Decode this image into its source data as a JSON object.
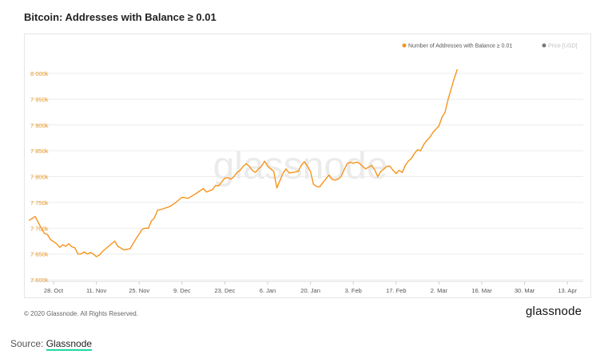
{
  "header": {
    "title": "Bitcoin: Addresses with Balance ≥ 0.01"
  },
  "footer": {
    "copyright": "© 2020 Glassnode. All Rights Reserved.",
    "brand": "glassnode"
  },
  "source": {
    "label": "Source:",
    "link_text": "Glassnode"
  },
  "watermark": "glassnode",
  "colors": {
    "series": "#f7931a",
    "price": "#777777",
    "tick_y": "#e8961e",
    "tick_x": "#555555",
    "grid": "#ececec"
  },
  "chart_data": {
    "type": "line",
    "title": "Bitcoin: Addresses with Balance ≥ 0.01",
    "xlabel": "",
    "ylabel": "",
    "legend": [
      {
        "name": "Number of Addresses with Balance ≥ 0.01",
        "color": "#f7931a"
      },
      {
        "name": "Price [USD]",
        "color": "#777777"
      }
    ],
    "legend_position": "top-right",
    "x_ticks": [
      "28. Oct",
      "11. Nov",
      "25. Nov",
      "9. Dec",
      "23. Dec",
      "6. Jan",
      "20. Jan",
      "3. Feb",
      "17. Feb",
      "2. Mar",
      "16. Mar",
      "30. Mar",
      "13. Apr"
    ],
    "y_ticks": [
      "7 600k",
      "7 650k",
      "7 700k",
      "7 750k",
      "7 800k",
      "7 850k",
      "7 900k",
      "7 950k",
      "8 000k"
    ],
    "ylim": [
      7600000,
      8000000
    ],
    "series": [
      {
        "name": "Number of Addresses with Balance ≥ 0.01",
        "x_days": [
          0,
          2,
          4,
          5,
          6,
          7,
          9,
          10,
          11,
          12,
          13,
          14,
          15,
          16,
          17,
          18,
          19,
          20,
          21,
          22,
          23,
          24,
          25,
          26,
          28,
          29,
          31,
          33,
          35,
          37,
          38,
          39,
          40,
          41,
          42,
          43,
          44,
          46,
          48,
          50,
          52,
          54,
          56,
          57,
          58,
          60,
          61,
          62,
          63,
          64,
          65,
          66,
          67,
          68,
          69,
          70,
          71,
          72,
          73,
          74,
          75,
          76,
          77,
          78,
          79,
          80,
          81,
          82,
          83,
          84,
          85,
          86,
          87,
          88,
          89,
          90,
          91,
          92,
          93,
          94,
          95,
          96,
          97,
          98,
          99,
          100,
          101,
          102,
          103,
          104,
          105,
          106,
          107,
          108,
          109,
          110,
          111,
          112,
          113,
          114,
          115,
          116,
          117,
          118,
          119,
          120,
          121,
          122,
          123,
          124,
          125,
          126,
          127,
          128,
          129,
          130,
          131,
          132,
          133,
          134,
          135,
          136,
          137,
          138,
          139,
          140
        ],
        "values": [
          7715000,
          7723000,
          7700000,
          7690000,
          7688000,
          7678000,
          7670000,
          7663000,
          7668000,
          7665000,
          7670000,
          7664000,
          7662000,
          7650000,
          7650000,
          7654000,
          7650000,
          7653000,
          7650000,
          7645000,
          7648000,
          7655000,
          7660000,
          7665000,
          7675000,
          7665000,
          7658000,
          7660000,
          7680000,
          7698000,
          7700000,
          7700000,
          7714000,
          7720000,
          7735000,
          7736000,
          7738000,
          7742000,
          7750000,
          7760000,
          7758000,
          7765000,
          7773000,
          7777000,
          7770000,
          7775000,
          7783000,
          7782000,
          7790000,
          7797000,
          7798000,
          7795000,
          7800000,
          7808000,
          7812000,
          7820000,
          7825000,
          7820000,
          7812000,
          7808000,
          7815000,
          7820000,
          7830000,
          7820000,
          7815000,
          7810000,
          7778000,
          7792000,
          7806000,
          7815000,
          7807000,
          7808000,
          7809000,
          7810000,
          7822000,
          7829000,
          7820000,
          7810000,
          7785000,
          7781000,
          7780000,
          7788000,
          7795000,
          7803000,
          7795000,
          7793000,
          7795000,
          7800000,
          7813000,
          7825000,
          7828000,
          7826000,
          7828000,
          7826000,
          7820000,
          7815000,
          7818000,
          7822000,
          7813000,
          7800000,
          7810000,
          7815000,
          7820000,
          7820000,
          7812000,
          7806000,
          7812000,
          7808000,
          7822000,
          7830000,
          7835000,
          7845000,
          7852000,
          7850000,
          7862000,
          7870000,
          7876000,
          7885000,
          7892000,
          7898000,
          7915000,
          7925000,
          7950000,
          7970000,
          7990000,
          8008000
        ]
      },
      {
        "name": "Price [USD]",
        "values": []
      }
    ],
    "grid": true
  }
}
